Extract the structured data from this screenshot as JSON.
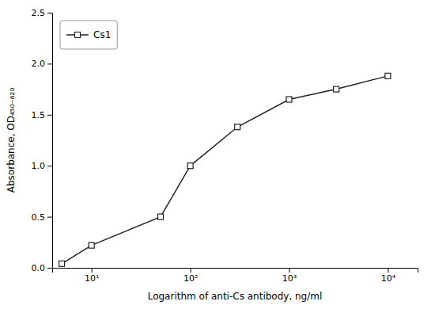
{
  "chart_data": {
    "type": "line",
    "x": [
      5,
      10,
      50,
      100,
      300,
      1000,
      3000,
      10000
    ],
    "series": [
      {
        "name": "Cs1",
        "color": "#222222",
        "marker": "square",
        "values": [
          0.04,
          0.22,
          0.5,
          1.0,
          1.38,
          1.65,
          1.75,
          1.88
        ]
      }
    ],
    "xlabel": "Logarithm of anti-Cs antibody, ng/ml",
    "ylabel": "Absorbance, OD₄₅₀₋₆₂₀",
    "log": "x",
    "xlim": [
      4,
      20000
    ],
    "ylim": [
      0.0,
      2.5
    ],
    "xticks": [
      {
        "value": 10,
        "label": "10¹"
      },
      {
        "value": 100,
        "label": "10²"
      },
      {
        "value": 1000,
        "label": "10³"
      },
      {
        "value": 10000,
        "label": "10⁴"
      }
    ],
    "yticks": [
      {
        "value": 0.0,
        "label": "0.0"
      },
      0.5,
      {
        "value": 1.0,
        "label": "1.0"
      },
      1.5,
      {
        "value": 2.0,
        "label": "2.0"
      },
      2.5
    ],
    "legend": "upper left"
  }
}
